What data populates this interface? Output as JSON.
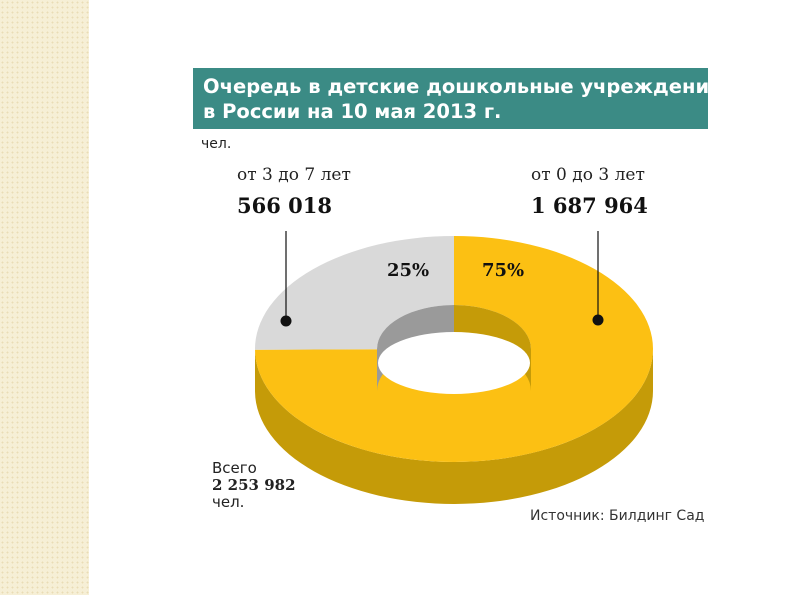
{
  "chart_data": {
    "type": "pie",
    "title_line1": "Очередь в детские дошкольные учреждения",
    "title_line2": "в России на 10 мая 2013 г.",
    "unit": "чел.",
    "slices": [
      {
        "label": "от 0 до 3 лет",
        "value_text": "1 687 964",
        "value": 1687964,
        "percent_label": "75%",
        "color": "#fcc013",
        "side_color": "#c59b08"
      },
      {
        "label": "от 3 до 7 лет",
        "value_text": "566 018",
        "value": 566018,
        "percent_label": "25%",
        "color": "#d9d9d9",
        "side_color": "#a8a8a8"
      }
    ],
    "total": {
      "prefix": "Всего",
      "value_text": "2 253 982",
      "unit": "чел.",
      "value": 2253982
    },
    "source": "Источник: Билдинг Сад"
  },
  "colors": {
    "title_bg": "#3b8b85",
    "accent_yellow": "#fcc013",
    "gray": "#d9d9d9"
  }
}
